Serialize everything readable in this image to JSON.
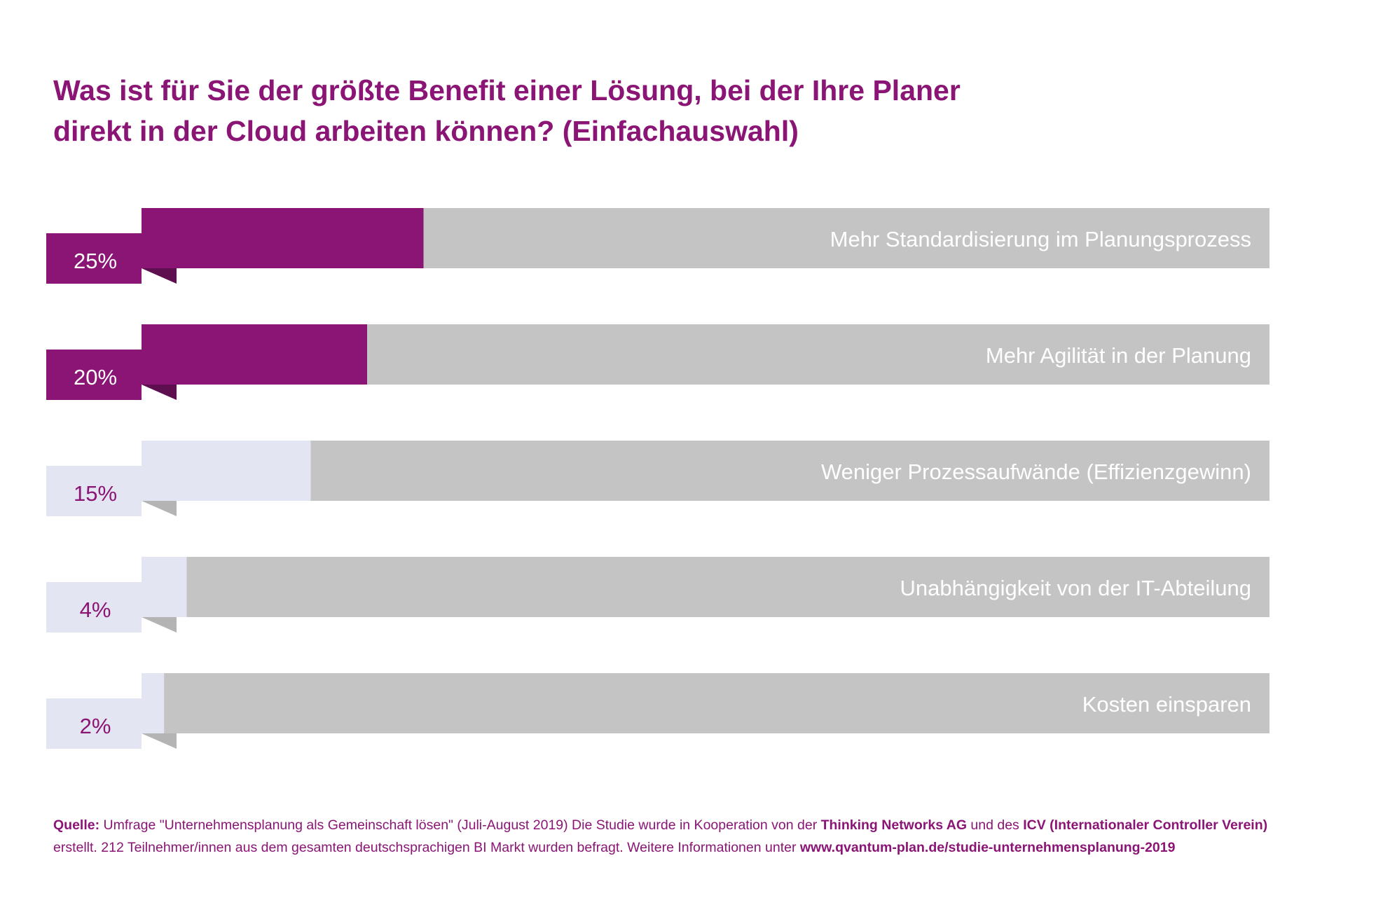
{
  "title": {
    "line1": "Was ist für Sie der größte Benefit einer Lösung, bei der Ihre Planer",
    "line2": "direkt in der Cloud arbeiten können? (Einfachauswahl)"
  },
  "chart_data": {
    "type": "bar",
    "orientation": "horizontal",
    "value_suffix": "%",
    "categories": [
      "Mehr Standardisierung im Planungsprozess",
      "Mehr Agilität in der Planung",
      "Weniger Prozessaufwände (Effizienzgewinn)",
      "Unabhängigkeit von der IT-Abteilung",
      "Kosten einsparen"
    ],
    "values": [
      25,
      20,
      15,
      4,
      2
    ],
    "xlim": [
      0,
      100
    ],
    "highlighted": [
      true,
      true,
      false,
      false,
      false
    ],
    "grid": false,
    "legend": "none",
    "colors": {
      "highlight": "#8a1575",
      "highlight_fold": "#5e0f50",
      "muted": "#e3e5f2",
      "muted_fold": "#b4b4b4",
      "track": "#c4c4c4",
      "category_text": "#ffffff",
      "highlight_value_text": "#ffffff",
      "muted_value_text": "#8a1575"
    }
  },
  "footer": {
    "source_label": "Quelle:",
    "text_1": " Umfrage \"Unternehmensplanung als Gemeinschaft lösen\" (Juli-August 2019) Die Studie wurde in Kooperation von der ",
    "org_1": "Thinking Networks AG",
    "text_2": " und des ",
    "org_2": "ICV (Internationaler Controller Verein)",
    "text_3": "erstellt. 212 Teilnehmer/innen aus dem gesamten deutschsprachigen BI Markt wurden befragt. Weitere Informationen unter ",
    "url": "www.qvantum-plan.de/studie-unternehmensplanung-2019"
  }
}
